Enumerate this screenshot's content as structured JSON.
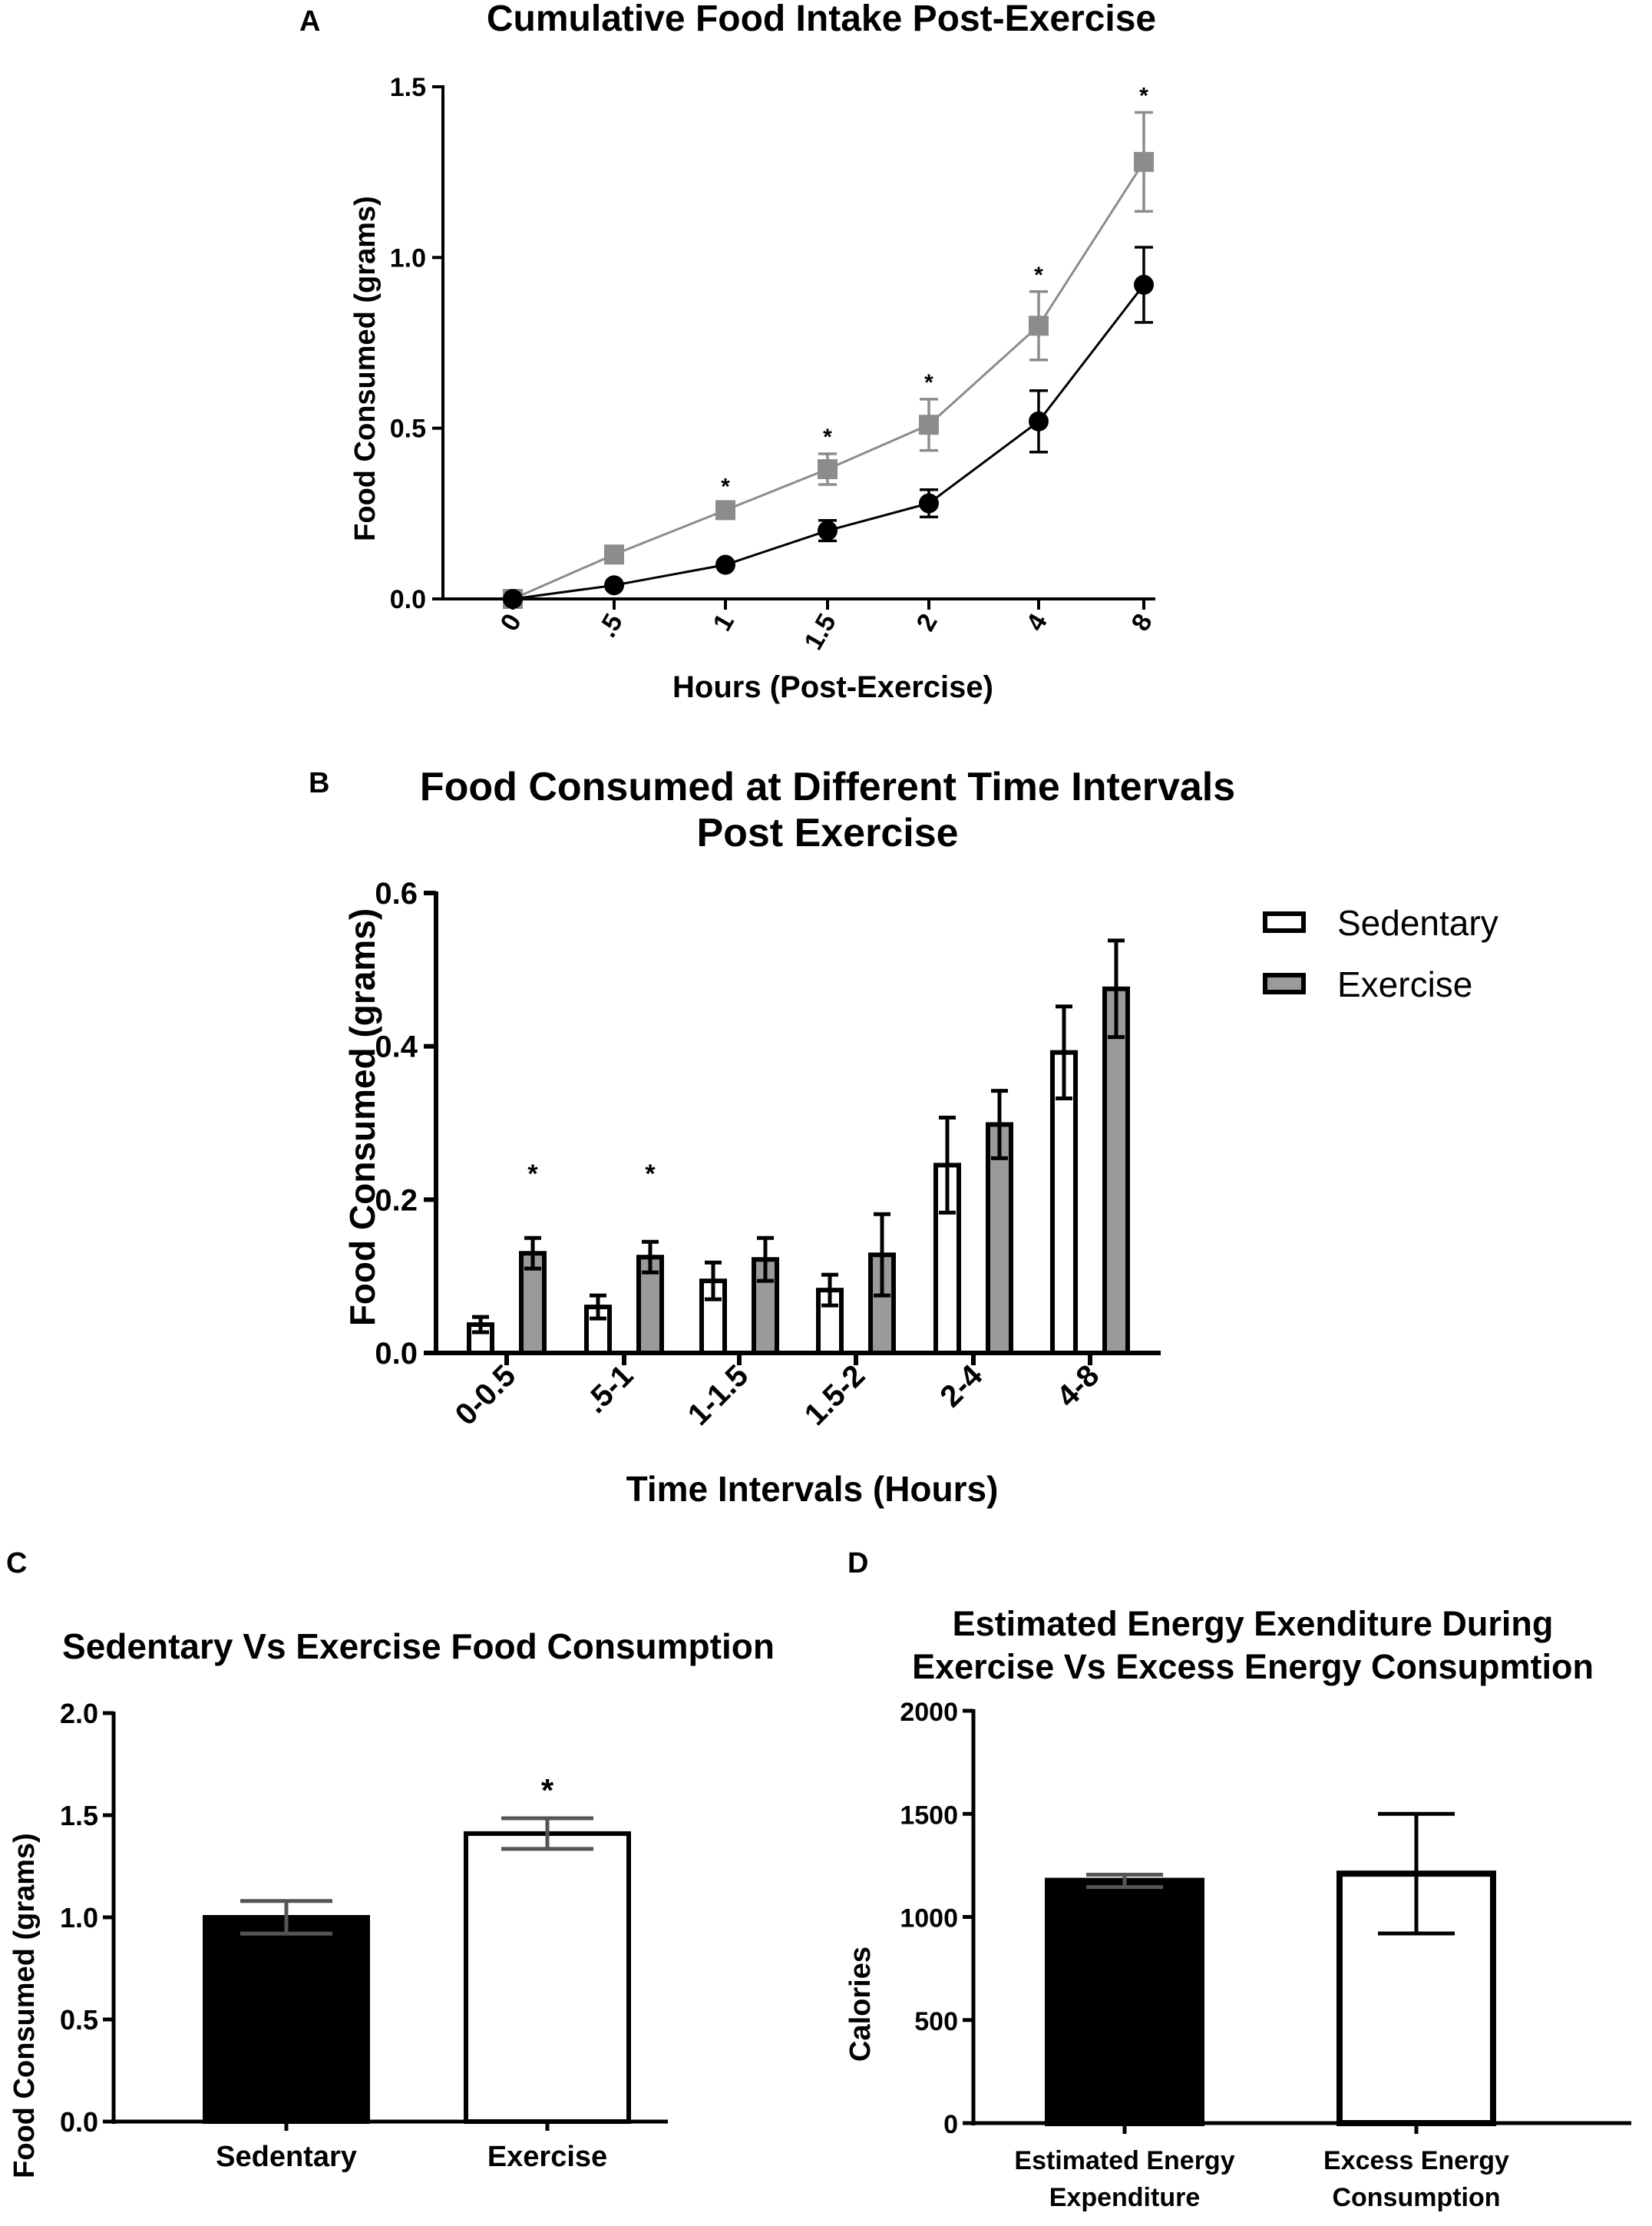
{
  "chart_data": [
    {
      "panel": "A",
      "type": "line",
      "title": "Cumulative Food Intake Post-Exercise",
      "xlabel": "Hours (Post-Exercise)",
      "ylabel": "Food Consumed (grams)",
      "categories": [
        "0",
        ".5",
        "1",
        "1.5",
        "2",
        "4",
        "8"
      ],
      "ylim": [
        0,
        1.5
      ],
      "yticks": [
        "0.0",
        "0.5",
        "1.0",
        "1.5"
      ],
      "series": [
        {
          "name": "Exercise",
          "color": "#8c8c8c",
          "marker": "square",
          "values": [
            0.0,
            0.13,
            0.26,
            0.38,
            0.51,
            0.8,
            1.28
          ],
          "errors": [
            0.0,
            0.0,
            0.02,
            0.045,
            0.075,
            0.1,
            0.145
          ]
        },
        {
          "name": "Sedentary",
          "color": "#000000",
          "marker": "circle",
          "values": [
            0.0,
            0.04,
            0.1,
            0.2,
            0.28,
            0.52,
            0.92
          ],
          "errors": [
            0.0,
            0.0,
            0.0,
            0.03,
            0.04,
            0.09,
            0.11
          ]
        }
      ],
      "significance": [
        "",
        "",
        "*",
        "*",
        "*",
        "*",
        "*"
      ]
    },
    {
      "panel": "B",
      "type": "bar",
      "title": [
        "Food Consumed at Different Time Intervals",
        "Post Exercise"
      ],
      "xlabel": "Time Intervals (Hours)",
      "ylabel": "Food Consumed (grams)",
      "categories": [
        "0-0.5",
        ".5-1",
        "1-1.5",
        "1.5-2",
        "2-4",
        "4-8"
      ],
      "ylim": [
        0,
        0.6
      ],
      "yticks": [
        "0.0",
        "0.2",
        "0.4",
        "0.6"
      ],
      "series": [
        {
          "name": "Sedentary",
          "color": "#ffffff",
          "values": [
            0.037,
            0.06,
            0.094,
            0.082,
            0.245,
            0.392
          ],
          "errors": [
            0.01,
            0.015,
            0.024,
            0.02,
            0.062,
            0.06
          ]
        },
        {
          "name": "Exercise",
          "color": "#9a9a9a",
          "values": [
            0.13,
            0.125,
            0.122,
            0.128,
            0.298,
            0.475
          ],
          "errors": [
            0.02,
            0.02,
            0.028,
            0.053,
            0.044,
            0.063
          ]
        }
      ],
      "legend": [
        "Sedentary",
        "Exercise"
      ],
      "significance": [
        "*",
        "*",
        "",
        "",
        "",
        ""
      ]
    },
    {
      "panel": "C",
      "type": "bar",
      "title": "Sedentary Vs Exercise Food Consumption",
      "ylabel": "Food Consumed (grams)",
      "categories": [
        "Sedentary",
        "Exercise"
      ],
      "values": [
        1.0,
        1.41
      ],
      "errors": [
        0.08,
        0.075
      ],
      "colors": [
        "#000000",
        "#ffffff"
      ],
      "ylim": [
        0,
        2.0
      ],
      "yticks": [
        "0.0",
        "0.5",
        "1.0",
        "1.5",
        "2.0"
      ],
      "significance": [
        "",
        "*"
      ]
    },
    {
      "panel": "D",
      "type": "bar",
      "title": [
        "Estimated Energy Exenditure During",
        "Exercise Vs Excess Energy Consupmtion"
      ],
      "ylabel": "Calories",
      "categories": [
        [
          "Estimated Energy",
          "Expenditure"
        ],
        [
          "Excess Energy",
          "Consumption"
        ]
      ],
      "values": [
        1175,
        1210
      ],
      "errors": [
        30,
        290
      ],
      "colors": [
        "#000000",
        "#ffffff"
      ],
      "ylim": [
        0,
        2000
      ],
      "yticks": [
        "0",
        "500",
        "1000",
        "1500",
        "2000"
      ]
    }
  ]
}
